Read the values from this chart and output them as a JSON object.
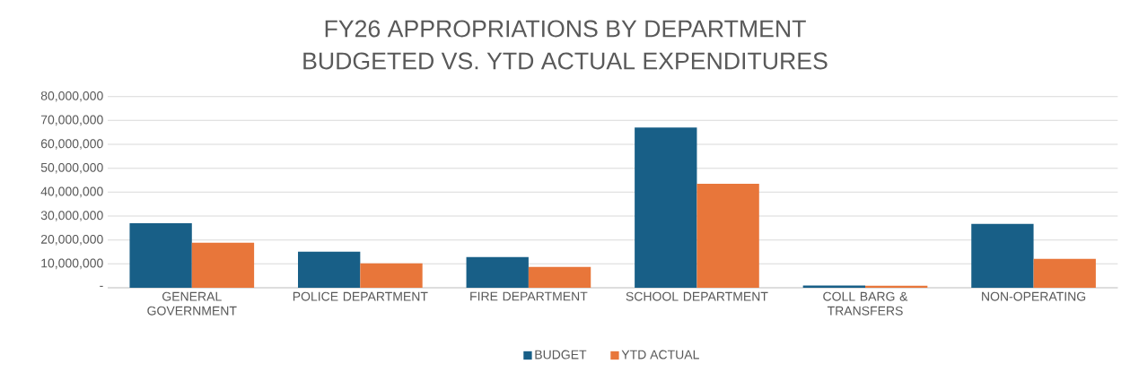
{
  "chart_data": {
    "type": "bar",
    "title": "FY26 APPROPRIATIONS BY DEPARTMENT",
    "subtitle": "BUDGETED VS. YTD ACTUAL EXPENDITURES",
    "categories": [
      "GENERAL GOVERNMENT",
      "POLICE DEPARTMENT",
      "FIRE DEPARTMENT",
      "SCHOOL DEPARTMENT",
      "COLL BARG & TRANSFERS",
      "NON-OPERATING"
    ],
    "series": [
      {
        "name": "BUDGET",
        "color": "#185f87",
        "values": [
          27000000,
          15100000,
          12800000,
          67000000,
          900000,
          26700000
        ]
      },
      {
        "name": "YTD ACTUAL",
        "color": "#e8763a",
        "values": [
          18800000,
          10200000,
          8700000,
          43500000,
          800000,
          12100000
        ]
      }
    ],
    "ylim": [
      0,
      80000000
    ],
    "yticks": [
      {
        "value": 0,
        "label": "-"
      },
      {
        "value": 10000000,
        "label": "10,000,000"
      },
      {
        "value": 20000000,
        "label": "20,000,000"
      },
      {
        "value": 30000000,
        "label": "30,000,000"
      },
      {
        "value": 40000000,
        "label": "40,000,000"
      },
      {
        "value": 50000000,
        "label": "50,000,000"
      },
      {
        "value": 60000000,
        "label": "60,000,000"
      },
      {
        "value": 70000000,
        "label": "70,000,000"
      },
      {
        "value": 80000000,
        "label": "80,000,000"
      }
    ],
    "grid": "y",
    "legend": "bottom"
  }
}
